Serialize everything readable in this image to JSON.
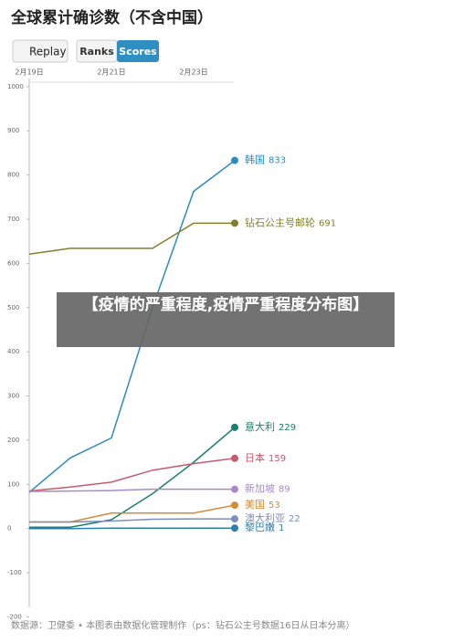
{
  "chart_data": {
    "type": "line",
    "title": "全球累计确诊数（不含中国）",
    "controls": [
      "Replay",
      "Ranks",
      "Scores"
    ],
    "categories": [
      "2月19日",
      null,
      "2月21日",
      null,
      "2月23日",
      null
    ],
    "ylim": [
      -230,
      1010
    ],
    "yticks": [
      1000,
      900,
      800,
      700,
      600,
      500,
      400,
      300,
      200,
      100,
      0,
      -100,
      -200
    ],
    "grid": false,
    "series": [
      {
        "name": "韩国",
        "color": "#2e8bc0",
        "values": [
          82,
          160,
          205,
          500,
          763,
          833
        ]
      },
      {
        "name": "钻石公主号邮轮",
        "color": "#80802a",
        "values": [
          621,
          634,
          634,
          634,
          691,
          691
        ]
      },
      {
        "name": "意大利",
        "color": "#1a7f6e",
        "values": [
          3,
          3,
          20,
          79,
          150,
          229
        ]
      },
      {
        "name": "日本",
        "color": "#c65b6b",
        "values": [
          85,
          94,
          105,
          132,
          147,
          159
        ]
      },
      {
        "name": "新加坡",
        "color": "#a98ac9",
        "values": [
          84,
          85,
          86,
          89,
          89,
          89
        ]
      },
      {
        "name": "美国",
        "color": "#d38a3a",
        "values": [
          15,
          15,
          35,
          35,
          35,
          53
        ]
      },
      {
        "name": "澳大利亚",
        "color": "#7a8fbf",
        "values": [
          15,
          15,
          17,
          21,
          22,
          22
        ]
      },
      {
        "name": "黎巴嫩",
        "color": "#2a7fb0",
        "values": [
          0,
          0,
          1,
          1,
          1,
          1
        ]
      }
    ]
  },
  "banner": "【疫情的严重程度,疫情严重程度分布图】",
  "source": "数据源：卫健委 • 本图表由数据化管理制作（ps：钻石公主号数据16日从日本分离）"
}
